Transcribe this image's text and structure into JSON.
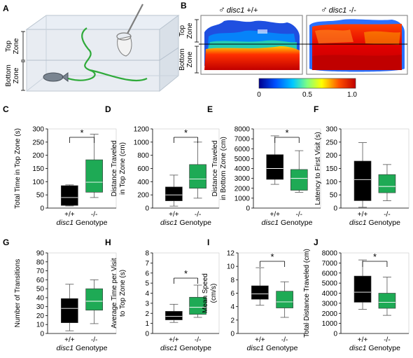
{
  "panels": {
    "A": {
      "letter": "A",
      "top_zone": "Top\nZone",
      "bottom_zone": "Bottom\nZone"
    },
    "B": {
      "letter": "B",
      "wt_title": "♂ disc1 +/+",
      "mut_title": "♂ disc1 -/-",
      "top_zone": "Top\nZone",
      "bottom_zone": "Bottom\nZone",
      "colorbar": {
        "min": "0",
        "mid": "0.5",
        "max": "1.0",
        "colors": [
          "#00008f",
          "#0050ff",
          "#00c8ff",
          "#80ff80",
          "#ffff00",
          "#ff5000",
          "#c00000"
        ]
      }
    }
  },
  "colors": {
    "wt": "#000000",
    "mut": "#1eaa55",
    "median_wt": "#ffffff",
    "median_mut": "#ffffff"
  },
  "chart_data": [
    {
      "id": "C",
      "letter": "C",
      "type": "box",
      "ylabel": "Total Time in Top Zone (s)",
      "ylim": [
        0,
        300
      ],
      "yticks": [
        0,
        50,
        100,
        150,
        200,
        250,
        300
      ],
      "categories": [
        "+/+",
        "-/-"
      ],
      "xlabel": "disc1 Genotype",
      "significance": "*",
      "boxes": [
        {
          "min": 8,
          "q1": 10,
          "median": 40,
          "q3": 85,
          "max": 88
        },
        {
          "min": 40,
          "q1": 60,
          "median": 98,
          "q3": 183,
          "max": 280
        }
      ]
    },
    {
      "id": "D",
      "letter": "D",
      "type": "box",
      "ylabel": "Distance Traveled\nin Top Zone (cm)",
      "ylim": [
        0,
        1200
      ],
      "yticks": [
        0,
        200,
        400,
        600,
        800,
        1000,
        1200
      ],
      "categories": [
        "+/+",
        "-/-"
      ],
      "xlabel": "disc1 Genotype",
      "significance": "*",
      "boxes": [
        {
          "min": 30,
          "q1": 110,
          "median": 200,
          "q3": 320,
          "max": 500
        },
        {
          "min": 150,
          "q1": 300,
          "median": 440,
          "q3": 660,
          "max": 1000
        }
      ]
    },
    {
      "id": "E",
      "letter": "E",
      "type": "box",
      "ylabel": "Distance Traveled\nin Bottom Zone (cm)",
      "ylim": [
        0,
        8000
      ],
      "yticks": [
        0,
        1000,
        2000,
        3000,
        4000,
        5000,
        6000,
        7000,
        8000
      ],
      "categories": [
        "+/+",
        "-/-"
      ],
      "xlabel": "disc1 Genotype",
      "significance": "*",
      "boxes": [
        {
          "min": 2400,
          "q1": 2900,
          "median": 4000,
          "q3": 5400,
          "max": 7300
        },
        {
          "min": 1600,
          "q1": 1800,
          "median": 3000,
          "q3": 3900,
          "max": 5800
        }
      ]
    },
    {
      "id": "F",
      "letter": "F",
      "type": "box",
      "ylabel": "Latency to First Visit (s)",
      "ylim": [
        0,
        300
      ],
      "yticks": [
        0,
        50,
        100,
        150,
        200,
        250,
        300
      ],
      "categories": [
        "+/+",
        "-/-"
      ],
      "xlabel": "disc1 Genotype",
      "significance": "",
      "boxes": [
        {
          "min": 3,
          "q1": 28,
          "median": 108,
          "q3": 178,
          "max": 248
        },
        {
          "min": 28,
          "q1": 58,
          "median": 82,
          "q3": 127,
          "max": 165
        }
      ]
    },
    {
      "id": "G",
      "letter": "G",
      "type": "box",
      "ylabel": "Number of Transitions",
      "ylim": [
        0,
        90
      ],
      "yticks": [
        0,
        10,
        20,
        30,
        40,
        50,
        60,
        70,
        80,
        90
      ],
      "categories": [
        "+/+",
        "-/-"
      ],
      "xlabel": "disc1 Genotype",
      "significance": "",
      "boxes": [
        {
          "min": 3,
          "q1": 12,
          "median": 28,
          "q3": 39,
          "max": 55
        },
        {
          "min": 11,
          "q1": 26,
          "median": 36,
          "q3": 50,
          "max": 60
        }
      ]
    },
    {
      "id": "H",
      "letter": "H",
      "type": "box",
      "ylabel": "Average Time per Visit\nto Top Zone (s)",
      "ylim": [
        0,
        8
      ],
      "yticks": [
        0,
        1,
        2,
        3,
        4,
        5,
        6,
        7,
        8
      ],
      "categories": [
        "+/+",
        "-/-"
      ],
      "xlabel": "disc1 Genotype",
      "significance": "*",
      "boxes": [
        {
          "min": 1.1,
          "q1": 1.35,
          "median": 1.7,
          "q3": 2.2,
          "max": 2.9
        },
        {
          "min": 1.6,
          "q1": 1.9,
          "median": 2.6,
          "q3": 3.6,
          "max": 4.8
        }
      ]
    },
    {
      "id": "I",
      "letter": "I",
      "type": "box",
      "ylabel": "Mean Speed\n(cm/s)",
      "ylim": [
        0,
        12
      ],
      "yticks": [
        0,
        2,
        4,
        6,
        8,
        10,
        12
      ],
      "categories": [
        "+/+",
        "-/-"
      ],
      "xlabel": "disc1 Genotype",
      "significance": "*",
      "boxes": [
        {
          "min": 4.2,
          "q1": 5.1,
          "median": 5.9,
          "q3": 7.1,
          "max": 9.8
        },
        {
          "min": 2.4,
          "q1": 3.8,
          "median": 4.7,
          "q3": 6.3,
          "max": 7.7
        }
      ]
    },
    {
      "id": "J",
      "letter": "J",
      "type": "box",
      "ylabel": "Total Distance Traveled (cm)",
      "ylim": [
        0,
        8000
      ],
      "yticks": [
        0,
        1000,
        2000,
        3000,
        4000,
        5000,
        6000,
        7000,
        8000
      ],
      "categories": [
        "+/+",
        "-/-"
      ],
      "xlabel": "disc1 Genotype",
      "significance": "*",
      "boxes": [
        {
          "min": 2400,
          "q1": 3100,
          "median": 4100,
          "q3": 5700,
          "max": 7300
        },
        {
          "min": 1800,
          "q1": 2500,
          "median": 3100,
          "q3": 4000,
          "max": 5600
        }
      ]
    }
  ]
}
